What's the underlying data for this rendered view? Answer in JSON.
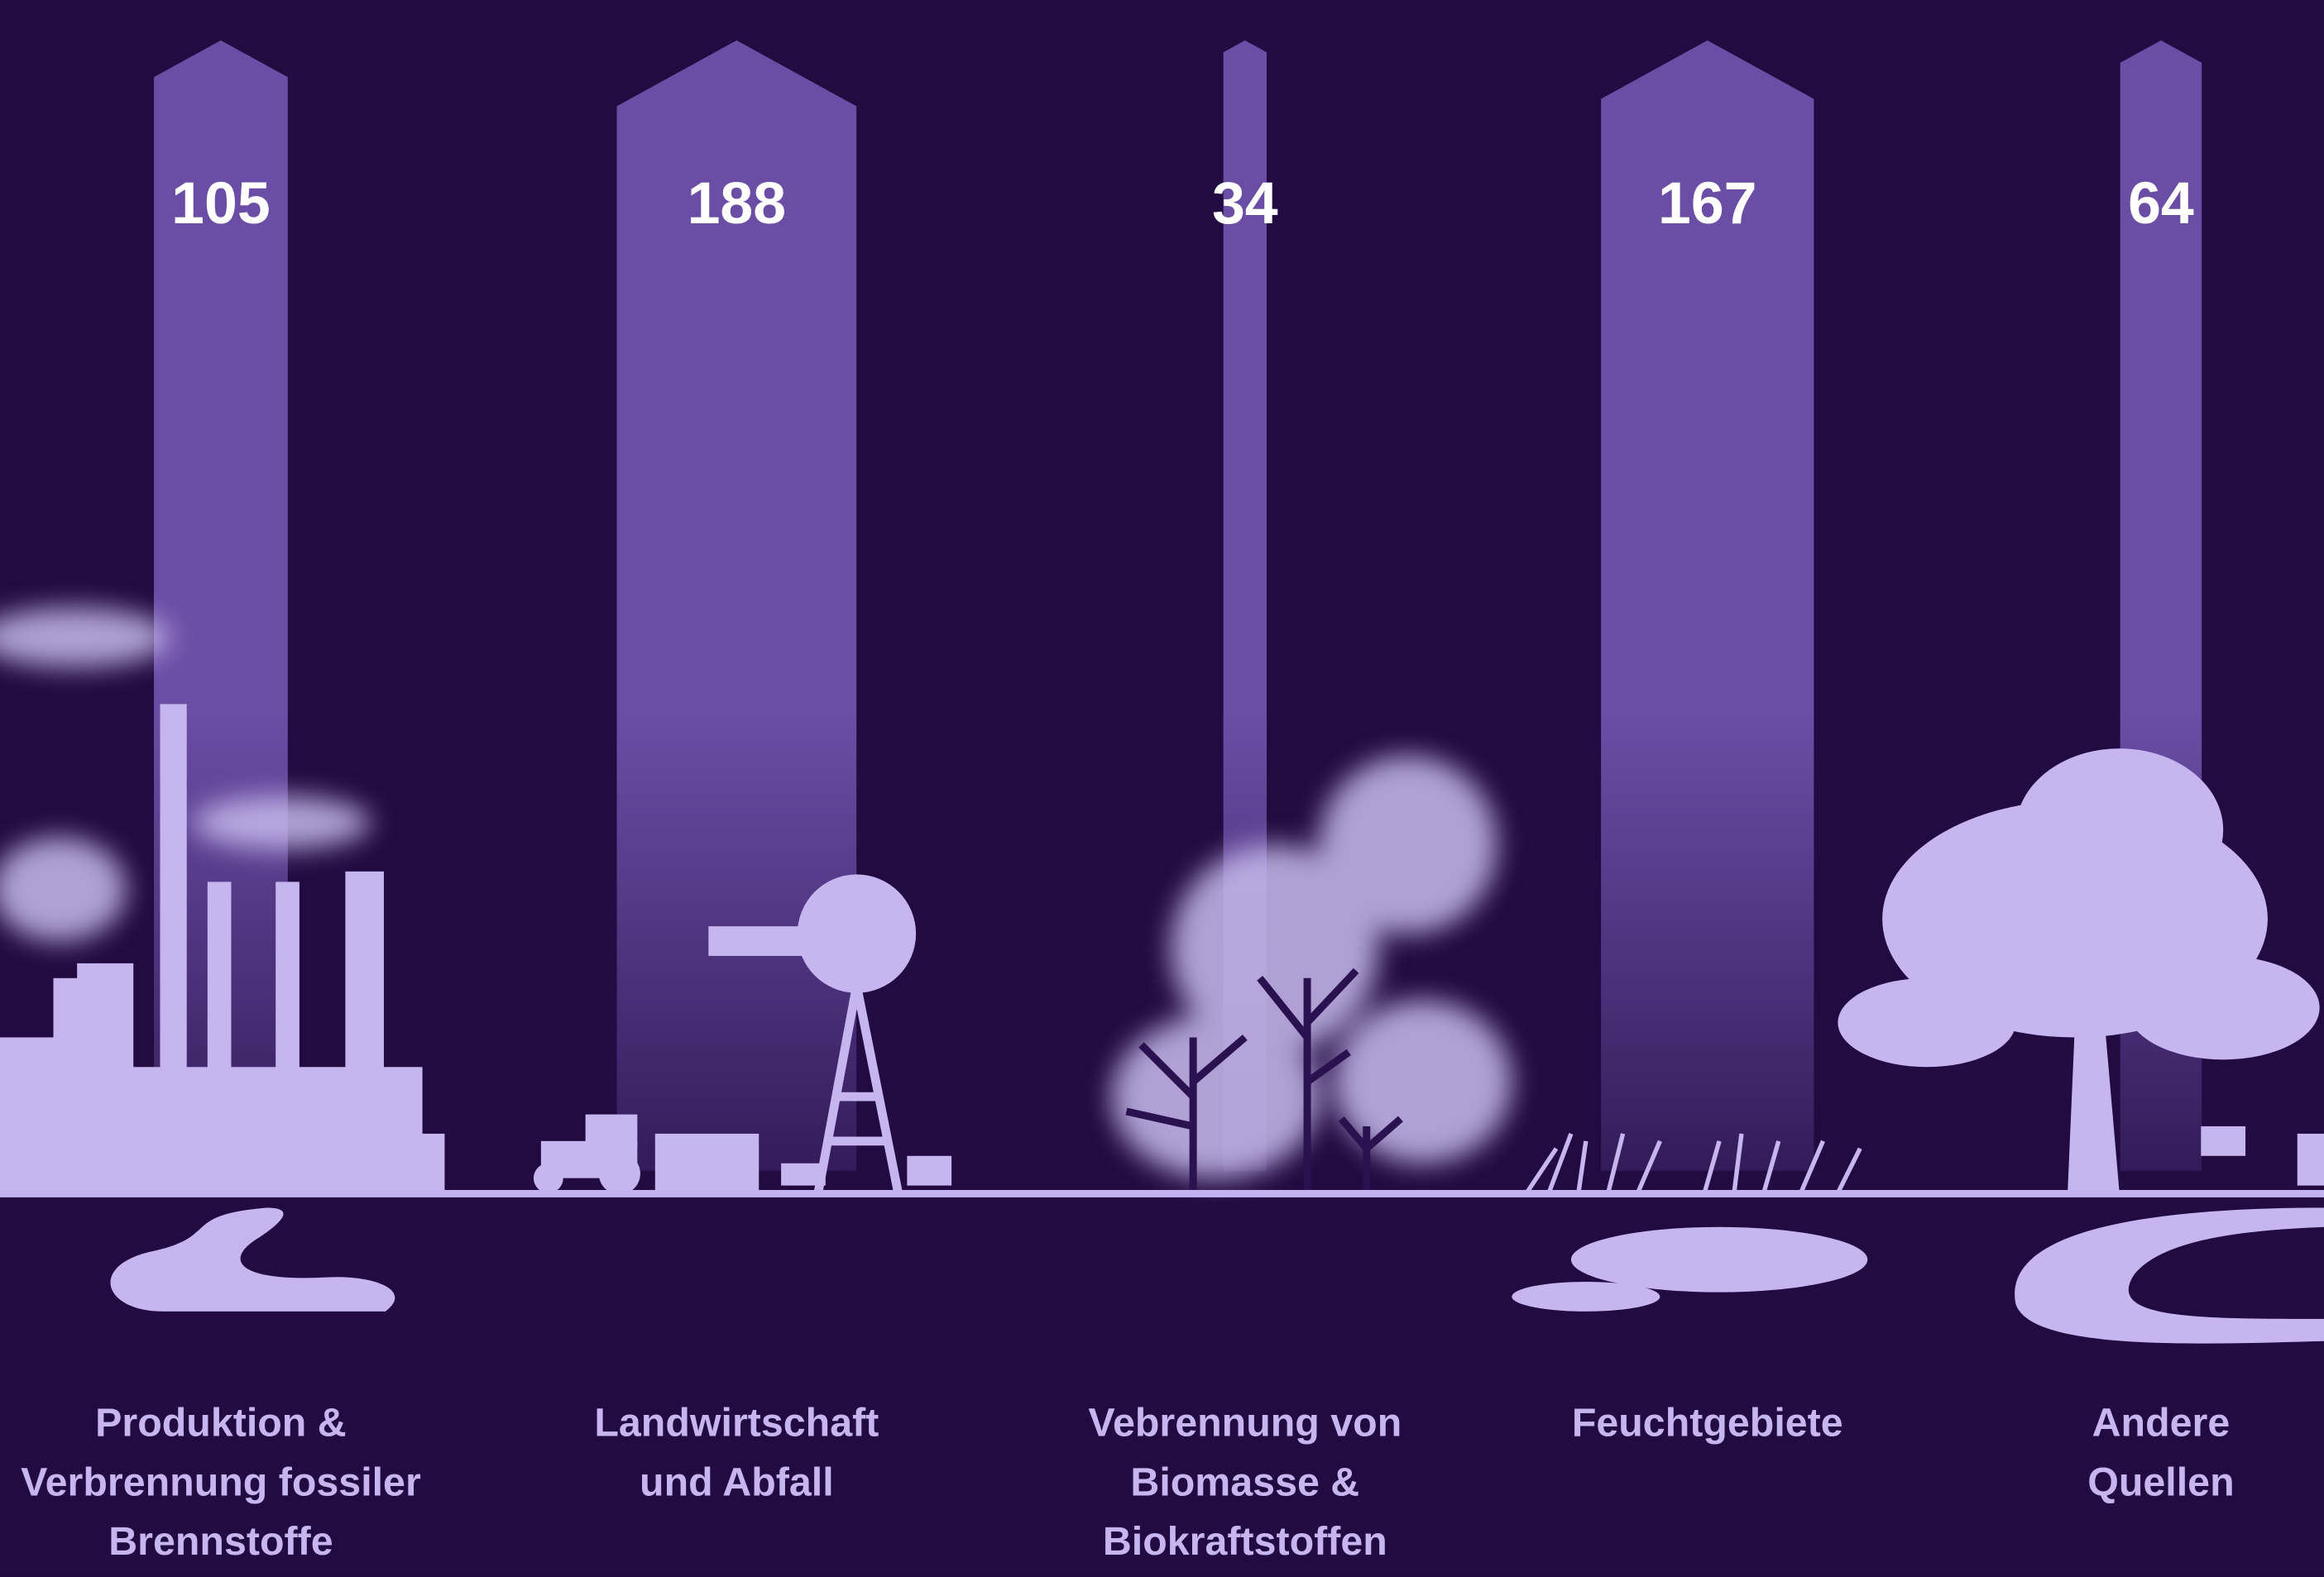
{
  "chart_data": {
    "type": "arrow-bar",
    "categories": [
      [
        "Produktion &",
        "Verbrennung fossiler",
        "Brennstoffe"
      ],
      [
        "Landwirtschaft",
        "und Abfall"
      ],
      [
        "Vebrennung von",
        "Biomasse &",
        "Biokraftstoffen"
      ],
      [
        "Feuchtgebiete"
      ],
      [
        "Andere",
        "Quellen"
      ]
    ],
    "values": [
      105,
      188,
      34,
      167,
      64
    ],
    "color": "#6a4ea6"
  }
}
